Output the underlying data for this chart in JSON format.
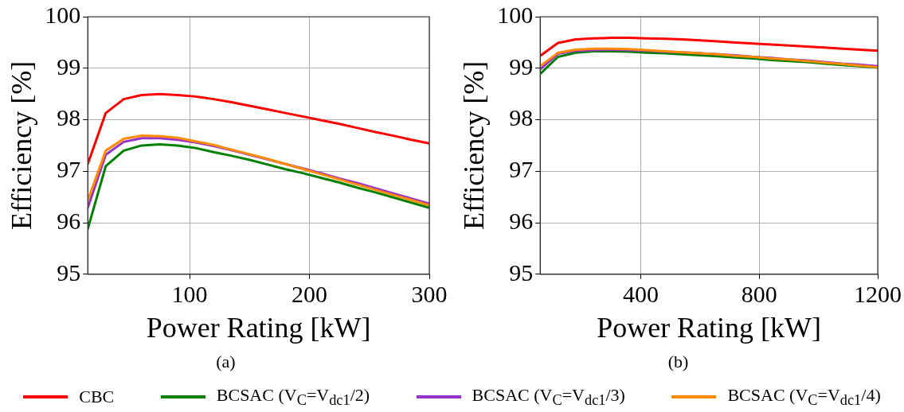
{
  "chart_data": [
    {
      "type": "line",
      "xlabel": "Power Rating [kW]",
      "ylabel": "Efficiency [%]",
      "annotations": [
        "(a)"
      ],
      "x": [
        15,
        30,
        45,
        60,
        75,
        90,
        105,
        120,
        135,
        150,
        165,
        180,
        195,
        210,
        225,
        240,
        255,
        270,
        285,
        300
      ],
      "xlim": [
        15,
        300
      ],
      "xticks": [
        100,
        200,
        300
      ],
      "ylim": [
        95,
        100
      ],
      "yticks": [
        95,
        96,
        97,
        98,
        99,
        100
      ],
      "grid": true,
      "legend": "bottom",
      "line_style": "solid",
      "marker": "none",
      "series": [
        {
          "name": "CBC",
          "color": "#ff0000",
          "values": [
            97.14,
            98.13,
            98.4,
            98.48,
            98.5,
            98.48,
            98.45,
            98.4,
            98.34,
            98.27,
            98.2,
            98.13,
            98.06,
            97.99,
            97.92,
            97.84,
            97.76,
            97.69,
            97.61,
            97.54
          ]
        },
        {
          "name": "BCSAC (V$_{C}$=V$_{dc1}$/2)",
          "color": "#008000",
          "values": [
            95.88,
            97.1,
            97.4,
            97.5,
            97.52,
            97.5,
            97.45,
            97.37,
            97.3,
            97.22,
            97.13,
            97.04,
            96.96,
            96.87,
            96.78,
            96.68,
            96.59,
            96.49,
            96.39,
            96.29
          ]
        },
        {
          "name": "BCSAC (V$_{C}$=V$_{dc1}$/3)",
          "color": "#9932cc",
          "values": [
            96.29,
            97.32,
            97.57,
            97.64,
            97.64,
            97.61,
            97.56,
            97.49,
            97.41,
            97.32,
            97.23,
            97.14,
            97.05,
            96.96,
            96.86,
            96.77,
            96.67,
            96.57,
            96.47,
            96.37
          ]
        },
        {
          "name": "BCSAC (V$_{C}$=V$_{dc1}$/4)",
          "color": "#ff8c00",
          "values": [
            96.43,
            97.4,
            97.63,
            97.69,
            97.68,
            97.65,
            97.58,
            97.51,
            97.42,
            97.33,
            97.24,
            97.14,
            97.04,
            96.94,
            96.84,
            96.74,
            96.64,
            96.54,
            96.44,
            96.34
          ]
        }
      ]
    },
    {
      "type": "line",
      "xlabel": "Power Rating [kW]",
      "ylabel": "Efficiency [%]",
      "annotations": [
        "(b)"
      ],
      "x": [
        60,
        120,
        180,
        240,
        300,
        360,
        420,
        480,
        540,
        600,
        660,
        720,
        780,
        840,
        900,
        960,
        1020,
        1080,
        1140,
        1200
      ],
      "xlim": [
        60,
        1200
      ],
      "xticks": [
        400,
        800,
        1200
      ],
      "ylim": [
        95,
        100
      ],
      "yticks": [
        95,
        96,
        97,
        98,
        99,
        100
      ],
      "grid": true,
      "line_style": "solid",
      "marker": "none",
      "series": [
        {
          "color": "#ff0000",
          "values": [
            99.24,
            99.49,
            99.56,
            99.58,
            99.59,
            99.59,
            99.58,
            99.57,
            99.56,
            99.54,
            99.52,
            99.5,
            99.48,
            99.46,
            99.44,
            99.42,
            99.4,
            99.38,
            99.36,
            99.34
          ]
        },
        {
          "color": "#008000",
          "values": [
            98.89,
            99.22,
            99.3,
            99.33,
            99.33,
            99.32,
            99.3,
            99.29,
            99.27,
            99.25,
            99.23,
            99.21,
            99.19,
            99.16,
            99.14,
            99.12,
            99.09,
            99.06,
            99.04,
            99.01
          ]
        },
        {
          "color": "#9932cc",
          "values": [
            98.98,
            99.28,
            99.34,
            99.35,
            99.36,
            99.35,
            99.34,
            99.32,
            99.31,
            99.29,
            99.27,
            99.25,
            99.22,
            99.2,
            99.17,
            99.15,
            99.12,
            99.09,
            99.07,
            99.04
          ]
        },
        {
          "color": "#ff8c00",
          "values": [
            99.04,
            99.3,
            99.36,
            99.38,
            99.38,
            99.37,
            99.35,
            99.33,
            99.31,
            99.29,
            99.27,
            99.24,
            99.22,
            99.19,
            99.17,
            99.14,
            99.11,
            99.08,
            99.05,
            99.02
          ]
        }
      ]
    }
  ]
}
